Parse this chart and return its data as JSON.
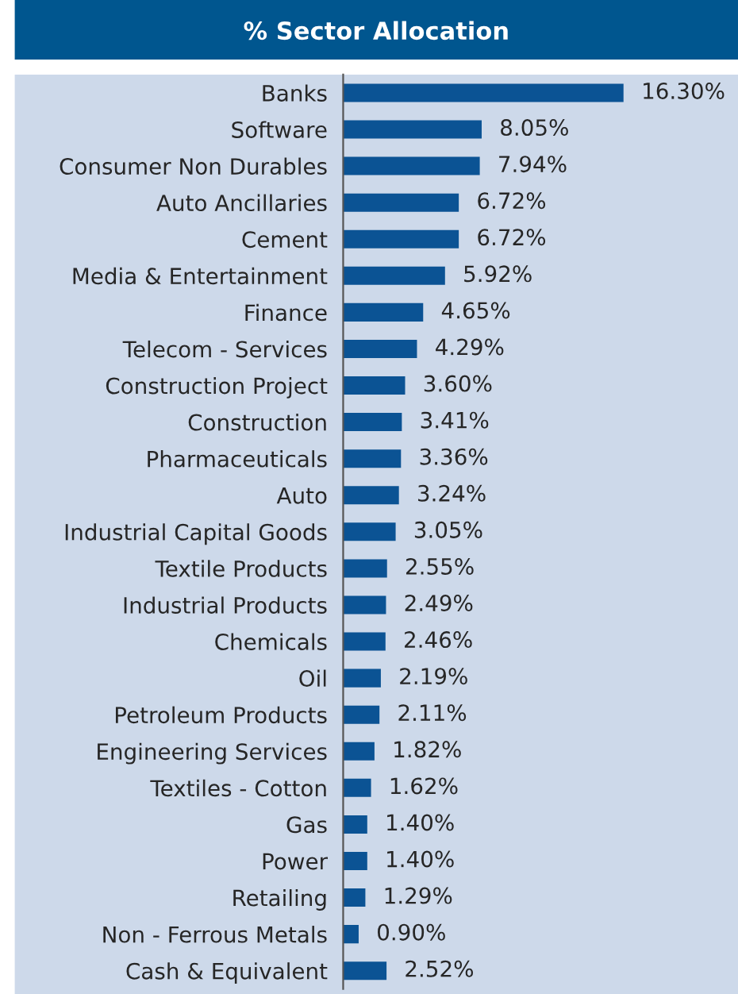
{
  "chart_data": {
    "type": "bar",
    "orientation": "horizontal",
    "title": "% Sector Allocation",
    "categories": [
      "Banks",
      "Software",
      "Consumer Non Durables",
      "Auto Ancillaries",
      "Cement",
      "Media & Entertainment",
      "Finance",
      "Telecom - Services",
      "Construction Project",
      "Construction",
      "Pharmaceuticals",
      "Auto",
      "Industrial Capital Goods",
      "Textile Products",
      "Industrial Products",
      "Chemicals",
      "Oil",
      "Petroleum Products",
      "Engineering Services",
      "Textiles - Cotton",
      "Gas",
      "Power",
      "Retailing",
      "Non - Ferrous Metals",
      "Cash & Equivalent"
    ],
    "values": [
      16.3,
      8.05,
      7.94,
      6.72,
      6.72,
      5.92,
      4.65,
      4.29,
      3.6,
      3.41,
      3.36,
      3.24,
      3.05,
      2.55,
      2.49,
      2.46,
      2.19,
      2.11,
      1.82,
      1.62,
      1.4,
      1.4,
      1.29,
      0.9,
      2.52
    ],
    "value_labels": [
      "16.30%",
      "8.05%",
      "7.94%",
      "6.72%",
      "6.72%",
      "5.92%",
      "4.65%",
      "4.29%",
      "3.60%",
      "3.41%",
      "3.36%",
      "3.24%",
      "3.05%",
      "2.55%",
      "2.49%",
      "2.46%",
      "2.19%",
      "2.11%",
      "1.82%",
      "1.62%",
      "1.40%",
      "1.40%",
      "1.29%",
      "0.90%",
      "2.52%"
    ],
    "color": "#0b5394",
    "grid": false,
    "legend": false
  }
}
